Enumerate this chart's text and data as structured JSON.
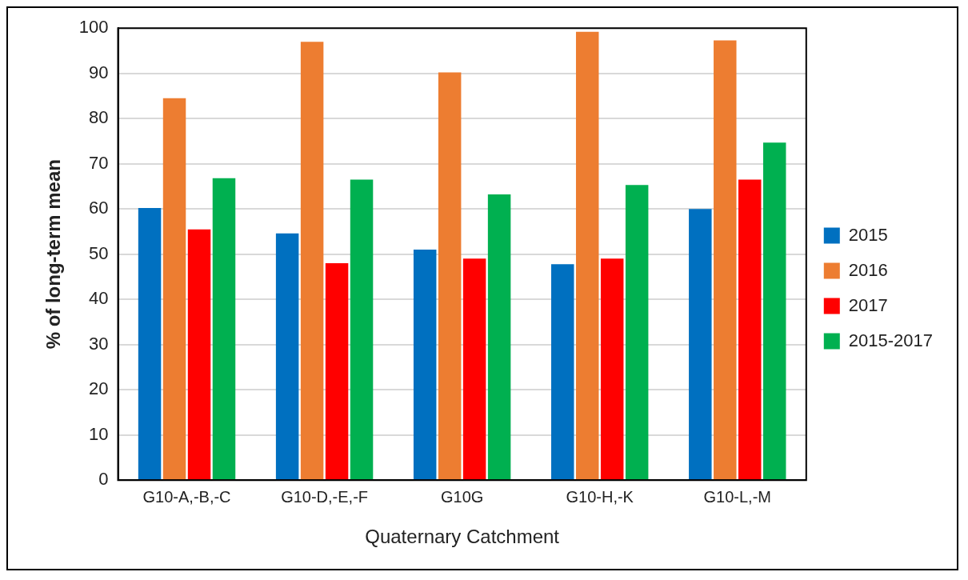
{
  "chart_data": {
    "type": "bar",
    "xlabel": "Quaternary Catchment",
    "ylabel": "% of long-term mean",
    "categories": [
      "G10-A,-B,-C",
      "G10-D,-E,-F",
      "G10G",
      "G10-H,-K",
      "G10-L,-M"
    ],
    "series": [
      {
        "name": "2015",
        "color": "#0070c0",
        "values": [
          60.2,
          54.6,
          51,
          47.8,
          60
        ]
      },
      {
        "name": "2016",
        "color": "#ed7d31",
        "values": [
          84.5,
          97,
          90.2,
          99.2,
          97.3
        ]
      },
      {
        "name": "2017",
        "color": "#ff0000",
        "values": [
          55.5,
          48,
          49,
          49,
          66.5
        ]
      },
      {
        "name": "2015-2017",
        "color": "#00b050",
        "values": [
          66.8,
          66.5,
          63.2,
          65.3,
          74.7
        ]
      }
    ],
    "ylim": [
      0,
      100
    ],
    "yticks": [
      0,
      10,
      20,
      30,
      40,
      50,
      60,
      70,
      80,
      90,
      100
    ],
    "grid": "y",
    "legend": "right"
  }
}
